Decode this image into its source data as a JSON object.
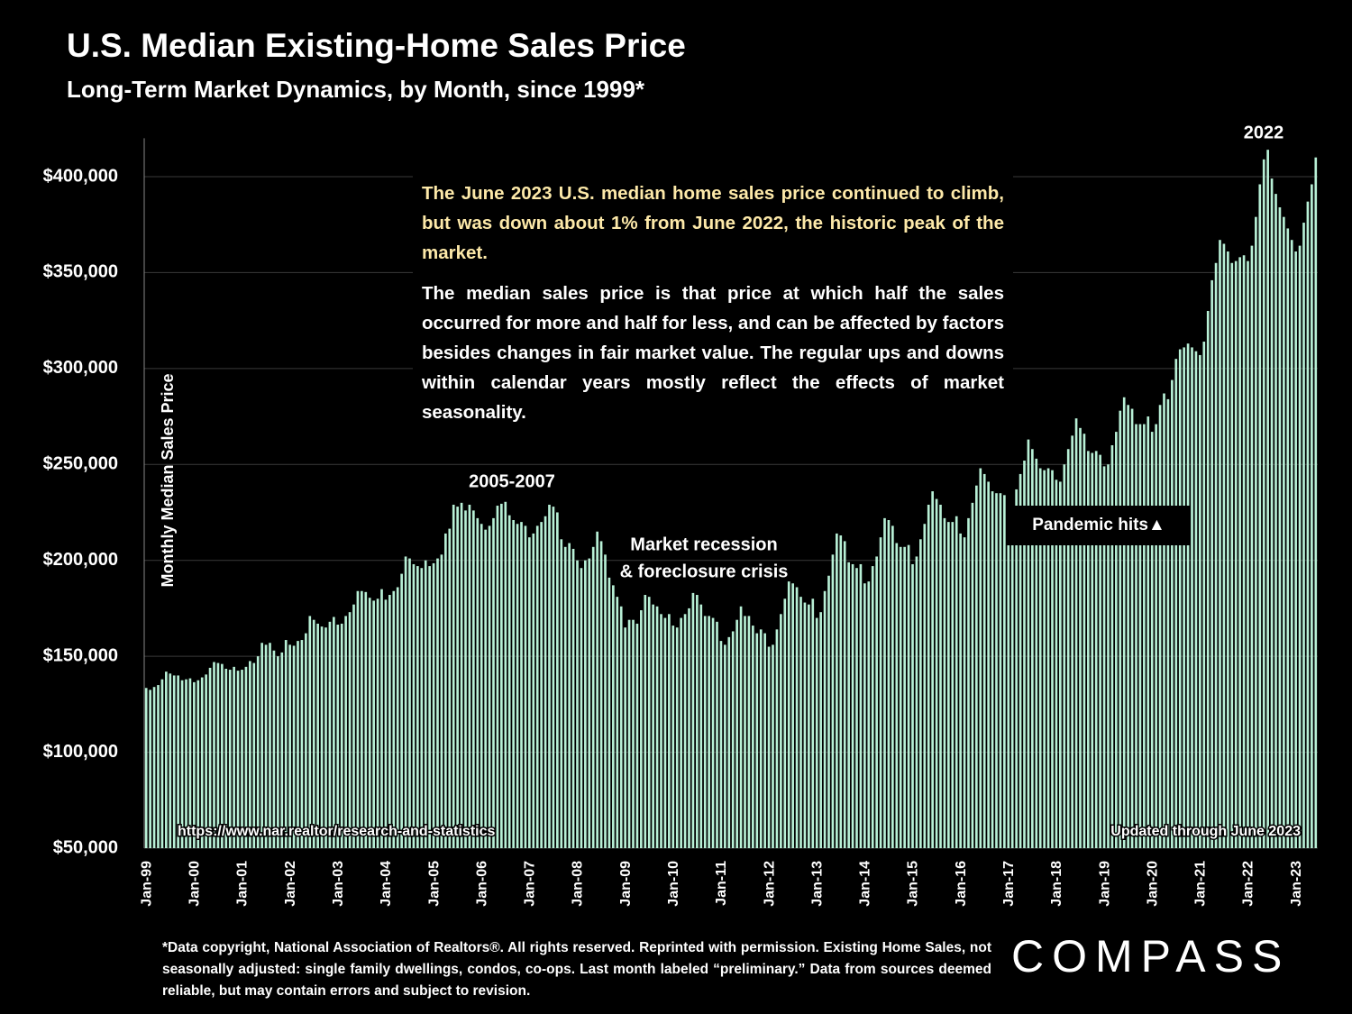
{
  "chart_data": {
    "type": "bar",
    "title": "U.S. Median Existing-Home Sales Price",
    "subtitle": "Long-Term Market Dynamics, by Month, since 1999*",
    "y_label": "Monthly Median Sales Price",
    "color": "#b8f0d6",
    "grid": true,
    "ylim": [
      50000,
      420000
    ],
    "yticks": [
      {
        "value": 50000,
        "label": "$50,000"
      },
      {
        "value": 100000,
        "label": "$100,000"
      },
      {
        "value": 150000,
        "label": "$150,000"
      },
      {
        "value": 200000,
        "label": "$200,000"
      },
      {
        "value": 250000,
        "label": "$250,000"
      },
      {
        "value": 300000,
        "label": "$300,000"
      },
      {
        "value": 350000,
        "label": "$350,000"
      },
      {
        "value": 400000,
        "label": "$400,000"
      }
    ],
    "categories": [
      "Jan-99",
      null,
      null,
      null,
      null,
      null,
      null,
      null,
      null,
      null,
      null,
      null,
      "Jan-00",
      null,
      null,
      null,
      null,
      null,
      null,
      null,
      null,
      null,
      null,
      null,
      "Jan-01",
      null,
      null,
      null,
      null,
      null,
      null,
      null,
      null,
      null,
      null,
      null,
      "Jan-02",
      null,
      null,
      null,
      null,
      null,
      null,
      null,
      null,
      null,
      null,
      null,
      "Jan-03",
      null,
      null,
      null,
      null,
      null,
      null,
      null,
      null,
      null,
      null,
      null,
      "Jan-04",
      null,
      null,
      null,
      null,
      null,
      null,
      null,
      null,
      null,
      null,
      null,
      "Jan-05",
      null,
      null,
      null,
      null,
      null,
      null,
      null,
      null,
      null,
      null,
      null,
      "Jan-06",
      null,
      null,
      null,
      null,
      null,
      null,
      null,
      null,
      null,
      null,
      null,
      "Jan-07",
      null,
      null,
      null,
      null,
      null,
      null,
      null,
      null,
      null,
      null,
      null,
      "Jan-08",
      null,
      null,
      null,
      null,
      null,
      null,
      null,
      null,
      null,
      null,
      null,
      "Jan-09",
      null,
      null,
      null,
      null,
      null,
      null,
      null,
      null,
      null,
      null,
      null,
      "Jan-10",
      null,
      null,
      null,
      null,
      null,
      null,
      null,
      null,
      null,
      null,
      null,
      "Jan-11",
      null,
      null,
      null,
      null,
      null,
      null,
      null,
      null,
      null,
      null,
      null,
      "Jan-12",
      null,
      null,
      null,
      null,
      null,
      null,
      null,
      null,
      null,
      null,
      null,
      "Jan-13",
      null,
      null,
      null,
      null,
      null,
      null,
      null,
      null,
      null,
      null,
      null,
      "Jan-14",
      null,
      null,
      null,
      null,
      null,
      null,
      null,
      null,
      null,
      null,
      null,
      "Jan-15",
      null,
      null,
      null,
      null,
      null,
      null,
      null,
      null,
      null,
      null,
      null,
      "Jan-16",
      null,
      null,
      null,
      null,
      null,
      null,
      null,
      null,
      null,
      null,
      null,
      "Jan-17",
      null,
      null,
      null,
      null,
      null,
      null,
      null,
      null,
      null,
      null,
      null,
      "Jan-18",
      null,
      null,
      null,
      null,
      null,
      null,
      null,
      null,
      null,
      null,
      null,
      "Jan-19",
      null,
      null,
      null,
      null,
      null,
      null,
      null,
      null,
      null,
      null,
      null,
      "Jan-20",
      null,
      null,
      null,
      null,
      null,
      null,
      null,
      null,
      null,
      null,
      null,
      "Jan-21",
      null,
      null,
      null,
      null,
      null,
      null,
      null,
      null,
      null,
      null,
      null,
      "Jan-22",
      null,
      null,
      null,
      null,
      null,
      null,
      null,
      null,
      null,
      null,
      null,
      "Jan-23",
      null,
      null,
      null,
      null,
      null
    ],
    "values": [
      133500,
      132500,
      134000,
      135000,
      138000,
      142000,
      141000,
      140000,
      140000,
      137500,
      138000,
      138500,
      136500,
      137500,
      139000,
      140500,
      144000,
      147000,
      146500,
      146000,
      143500,
      143000,
      144500,
      142500,
      143000,
      144500,
      147500,
      146500,
      150000,
      157000,
      156000,
      157000,
      153000,
      150000,
      152000,
      158500,
      156000,
      155500,
      158000,
      158500,
      162000,
      171000,
      169000,
      167000,
      165500,
      165000,
      168000,
      170500,
      166500,
      167000,
      171000,
      173000,
      177000,
      184000,
      184000,
      183500,
      180500,
      179000,
      180000,
      185000,
      179500,
      182000,
      184000,
      186000,
      193000,
      202000,
      201000,
      198000,
      197000,
      196000,
      200000,
      197000,
      198500,
      201000,
      203000,
      214000,
      216500,
      229000,
      228000,
      230000,
      226000,
      229000,
      226000,
      222000,
      219000,
      216000,
      218000,
      222000,
      228500,
      229500,
      230500,
      223500,
      221000,
      219000,
      220000,
      218000,
      212000,
      214000,
      218000,
      220000,
      223000,
      229000,
      228000,
      225000,
      211000,
      207000,
      209000,
      206000,
      200000,
      196000,
      200000,
      201000,
      207000,
      215000,
      210000,
      203000,
      191000,
      187000,
      181000,
      176000,
      165000,
      169000,
      169000,
      167000,
      174000,
      182000,
      181000,
      177000,
      176000,
      172000,
      170000,
      172000,
      166000,
      165000,
      170000,
      172000,
      175000,
      183000,
      182000,
      177000,
      171000,
      171000,
      170000,
      168000,
      158000,
      156000,
      160000,
      163000,
      169000,
      176000,
      171000,
      171000,
      166000,
      162000,
      164000,
      162000,
      155000,
      156000,
      164000,
      172000,
      180000,
      189000,
      188000,
      186000,
      181000,
      178000,
      177000,
      180000,
      170000,
      173000,
      184000,
      192000,
      203000,
      214000,
      213000,
      210000,
      199000,
      198000,
      196000,
      198000,
      188000,
      189000,
      197000,
      202000,
      212000,
      222000,
      221000,
      218000,
      209000,
      207000,
      207000,
      208000,
      198000,
      202000,
      211000,
      219000,
      229000,
      236000,
      232000,
      229000,
      222000,
      220000,
      220000,
      223000,
      214000,
      212000,
      222000,
      230000,
      239000,
      248000,
      245000,
      241000,
      236000,
      235000,
      235000,
      234000,
      228000,
      228000,
      237000,
      245000,
      252000,
      263000,
      258000,
      253000,
      248000,
      247000,
      248000,
      247000,
      242000,
      241000,
      250000,
      258000,
      265000,
      274000,
      269000,
      266000,
      257000,
      256000,
      257000,
      255000,
      249000,
      250000,
      260000,
      267000,
      278000,
      285000,
      281000,
      279000,
      271000,
      271000,
      271000,
      275000,
      267000,
      271000,
      281000,
      287000,
      284000,
      294000,
      305000,
      310000,
      311000,
      313000,
      311000,
      309000,
      307000,
      314000,
      330000,
      346000,
      355000,
      367000,
      365000,
      361000,
      355000,
      356000,
      358000,
      359000,
      356000,
      364000,
      379000,
      396000,
      409000,
      414000,
      399000,
      391000,
      384000,
      379000,
      373000,
      367000,
      361000,
      364000,
      376000,
      387000,
      396000,
      410000
    ],
    "note_highlight": "The June 2023 U.S. median home sales price continued to climb, but was down about 1% from June 2022, the historic peak of the market.",
    "note_body": "The median sales price is that price at which half the sales occurred for more and half for less, and can be affected by factors besides changes in fair market value. The regular ups and downs within calendar years mostly reflect the effects of market seasonality.",
    "annotation_2005": "2005-2007",
    "annotation_recession": [
      "Market recession",
      "& foreclosure crisis"
    ],
    "annotation_pandemic": "Pandemic hits▲",
    "annotation_2022": "2022",
    "source_url": "https://www.nar.realtor/research-and-statistics",
    "updated": "Updated through June 2023",
    "footnote": "*Data copyright, National Association of Realtors®. All rights reserved. Reprinted with permission. Existing Home Sales, not seasonally adjusted:  single family dwellings, condos, co-ops. Last month labeled “preliminary.” Data from sources deemed reliable, but may contain errors and subject to revision.",
    "logo": "COMPASS"
  }
}
